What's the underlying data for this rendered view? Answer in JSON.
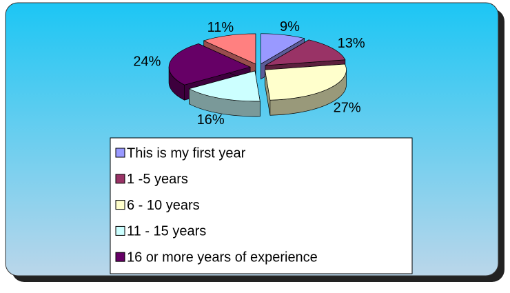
{
  "chart_data": {
    "type": "pie",
    "categories": [
      "This is my first year",
      "1 -5 years",
      "6 - 10 years",
      "11 - 15 years",
      "16 or more years of experience",
      null
    ],
    "values": [
      9,
      13,
      27,
      16,
      24,
      11
    ],
    "value_labels": [
      "9%",
      "13%",
      "27%",
      "16%",
      "24%",
      "11%"
    ],
    "colors": [
      "#9999ff",
      "#993366",
      "#ffffcc",
      "#ccffff",
      "#660066",
      "#ff8080"
    ],
    "legend": "bottom"
  }
}
